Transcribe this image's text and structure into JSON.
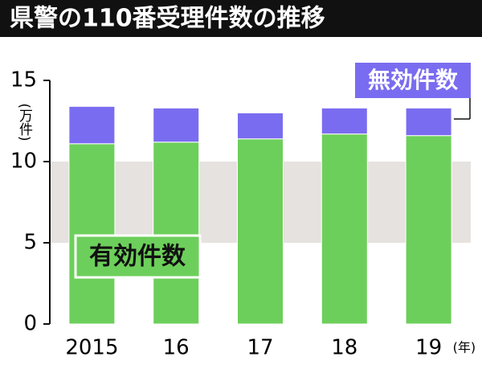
{
  "chart_data": {
    "type": "bar",
    "stacked": true,
    "title": "県警の110番受理件数の推移",
    "y_label": "(万件)",
    "x_unit": "(年)",
    "categories": [
      "2015",
      "16",
      "17",
      "18",
      "19"
    ],
    "series": [
      {
        "name": "有効件数",
        "color": "#6dcf5b",
        "values": [
          11.1,
          11.2,
          11.4,
          11.7,
          11.6
        ]
      },
      {
        "name": "無効件数",
        "color": "#7a6cf0",
        "values": [
          2.3,
          2.1,
          1.6,
          1.6,
          1.7
        ]
      }
    ],
    "ylim": [
      0,
      15
    ],
    "yticks": [
      0,
      5,
      10,
      15
    ],
    "band_color": "#e6e2df"
  }
}
